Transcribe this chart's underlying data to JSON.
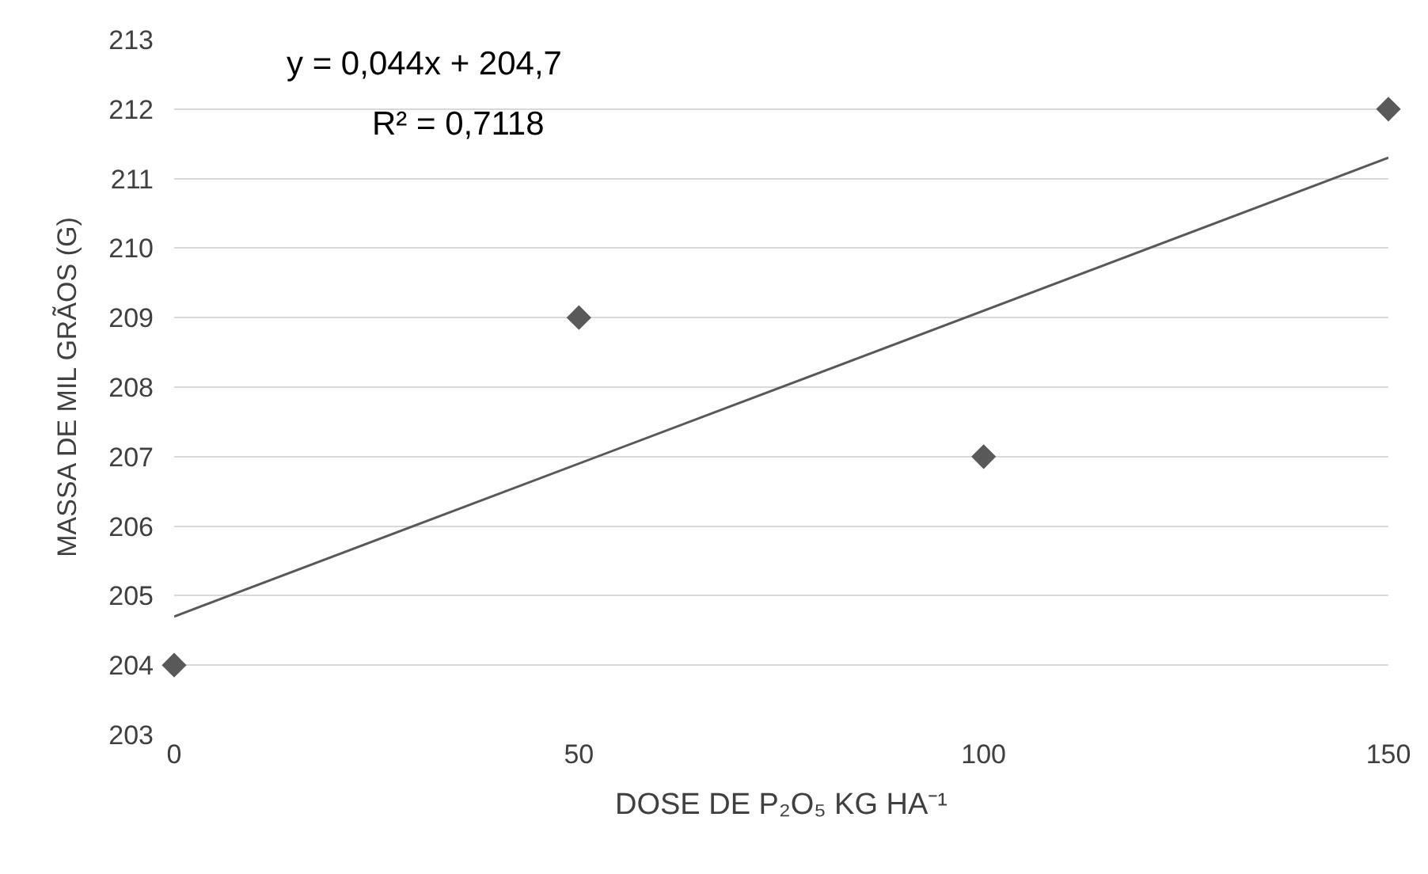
{
  "chart_data": {
    "type": "scatter",
    "xlabel": "DOSE DE P₂O₅ KG HA⁻¹",
    "ylabel": "MASSA DE MIL GRÃOS (G)",
    "x": [
      0,
      50,
      100,
      150
    ],
    "xlim": [
      0,
      150
    ],
    "xticks": [
      0,
      50,
      100,
      150
    ],
    "ylim": [
      203,
      213
    ],
    "yticks": [
      203,
      204,
      205,
      206,
      207,
      208,
      209,
      210,
      211,
      212,
      213
    ],
    "grid": "y",
    "marker": "diamond",
    "series": [
      {
        "color": "#595959",
        "values": [
          204,
          209,
          207,
          212
        ]
      },
      {
        "type": "line",
        "marker": "none",
        "color": "#595959",
        "x": [
          0,
          150
        ],
        "values": [
          204.7,
          211.3
        ]
      }
    ],
    "annotations": [
      "y = 0,044x + 204,7",
      "R² = 0,7118"
    ]
  }
}
